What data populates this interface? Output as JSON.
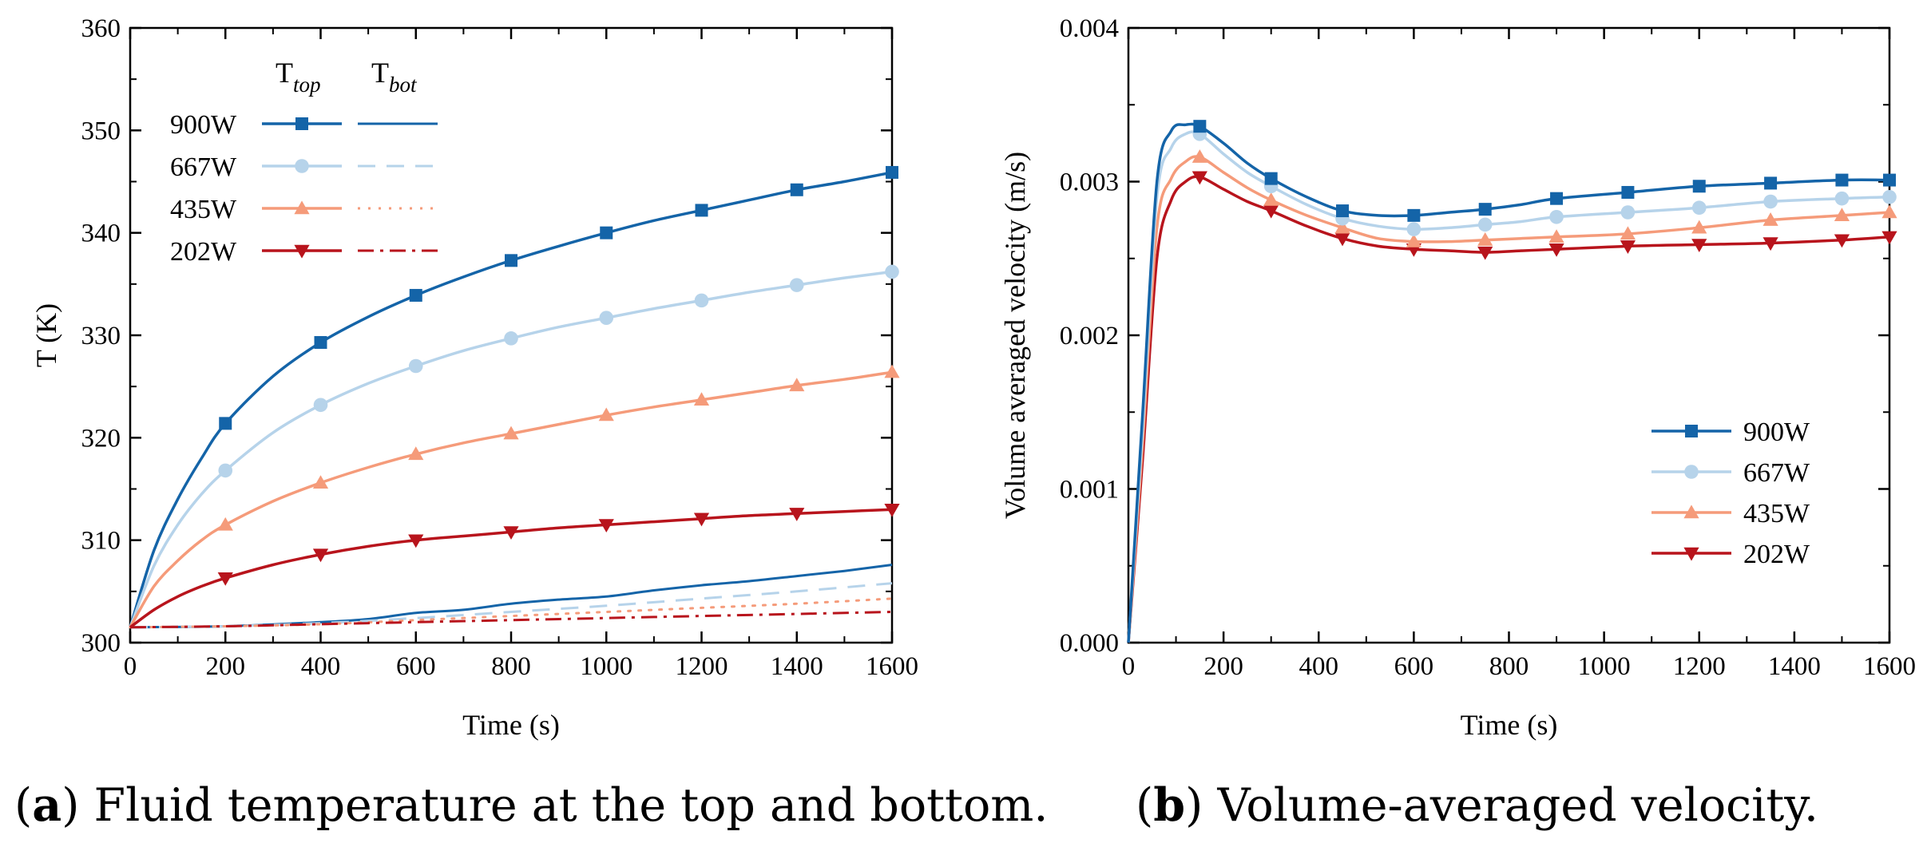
{
  "colors": {
    "900W": "#1464a8",
    "667W": "#b6d3ea",
    "435W": "#f59b7a",
    "202W": "#b8141c"
  },
  "chart_data": [
    {
      "id": "a",
      "type": "line",
      "xlabel": "Time (s)",
      "ylabel": "T (K)",
      "xlim": [
        0,
        1600
      ],
      "ylim": [
        300,
        360
      ],
      "xticks": [
        0,
        200,
        400,
        600,
        800,
        1000,
        1200,
        1400,
        1600
      ],
      "yticks": [
        300,
        310,
        320,
        330,
        340,
        350,
        360
      ],
      "legend_headers": {
        "top_base": "T",
        "top_sub": "top",
        "bot_base": "T",
        "bot_sub": "bot"
      },
      "series": [
        {
          "name": "900W",
          "key": "900W",
          "marker": "square",
          "top": [
            [
              0,
              301.5
            ],
            [
              50,
              309
            ],
            [
              100,
              314
            ],
            [
              150,
              318
            ],
            [
              200,
              321.4
            ],
            [
              300,
              326
            ],
            [
              400,
              329.3
            ],
            [
              500,
              331.8
            ],
            [
              600,
              333.9
            ],
            [
              700,
              335.7
            ],
            [
              800,
              337.3
            ],
            [
              900,
              338.7
            ],
            [
              1000,
              340
            ],
            [
              1100,
              341.2
            ],
            [
              1200,
              342.2
            ],
            [
              1300,
              343.2
            ],
            [
              1400,
              344.2
            ],
            [
              1500,
              345
            ],
            [
              1600,
              345.9
            ]
          ],
          "bot": [
            [
              0,
              301.5
            ],
            [
              200,
              301.6
            ],
            [
              400,
              302
            ],
            [
              500,
              302.3
            ],
            [
              600,
              302.9
            ],
            [
              700,
              303.2
            ],
            [
              800,
              303.8
            ],
            [
              900,
              304.2
            ],
            [
              1000,
              304.5
            ],
            [
              1100,
              305.1
            ],
            [
              1200,
              305.6
            ],
            [
              1300,
              306
            ],
            [
              1400,
              306.5
            ],
            [
              1500,
              307
            ],
            [
              1600,
              307.6
            ]
          ]
        },
        {
          "name": "667W",
          "key": "667W",
          "marker": "circle",
          "top": [
            [
              0,
              301.5
            ],
            [
              50,
              307.5
            ],
            [
              100,
              311.5
            ],
            [
              150,
              314.5
            ],
            [
              200,
              316.8
            ],
            [
              300,
              320.5
            ],
            [
              400,
              323.2
            ],
            [
              500,
              325.3
            ],
            [
              600,
              327
            ],
            [
              700,
              328.5
            ],
            [
              800,
              329.7
            ],
            [
              900,
              330.8
            ],
            [
              1000,
              331.7
            ],
            [
              1100,
              332.6
            ],
            [
              1200,
              333.4
            ],
            [
              1300,
              334.2
            ],
            [
              1400,
              334.9
            ],
            [
              1500,
              335.6
            ],
            [
              1600,
              336.2
            ]
          ],
          "bot": [
            [
              0,
              301.5
            ],
            [
              200,
              301.6
            ],
            [
              400,
              301.9
            ],
            [
              600,
              302.4
            ],
            [
              800,
              303
            ],
            [
              1000,
              303.6
            ],
            [
              1200,
              304.3
            ],
            [
              1400,
              305
            ],
            [
              1600,
              305.8
            ]
          ]
        },
        {
          "name": "435W",
          "key": "435W",
          "marker": "triangle-up",
          "top": [
            [
              0,
              301.5
            ],
            [
              50,
              305.5
            ],
            [
              100,
              308
            ],
            [
              150,
              310
            ],
            [
              200,
              311.5
            ],
            [
              300,
              313.8
            ],
            [
              400,
              315.6
            ],
            [
              500,
              317.1
            ],
            [
              600,
              318.4
            ],
            [
              700,
              319.5
            ],
            [
              800,
              320.4
            ],
            [
              900,
              321.3
            ],
            [
              1000,
              322.2
            ],
            [
              1100,
              323
            ],
            [
              1200,
              323.7
            ],
            [
              1300,
              324.4
            ],
            [
              1400,
              325.1
            ],
            [
              1500,
              325.7
            ],
            [
              1600,
              326.4
            ]
          ],
          "bot": [
            [
              0,
              301.5
            ],
            [
              200,
              301.6
            ],
            [
              400,
              301.8
            ],
            [
              600,
              302.2
            ],
            [
              800,
              302.6
            ],
            [
              1000,
              303
            ],
            [
              1200,
              303.4
            ],
            [
              1400,
              303.8
            ],
            [
              1600,
              304.3
            ]
          ]
        },
        {
          "name": "202W",
          "key": "202W",
          "marker": "triangle-down",
          "top": [
            [
              0,
              301.5
            ],
            [
              50,
              303.2
            ],
            [
              100,
              304.5
            ],
            [
              150,
              305.5
            ],
            [
              200,
              306.3
            ],
            [
              300,
              307.6
            ],
            [
              400,
              308.6
            ],
            [
              500,
              309.4
            ],
            [
              600,
              310
            ],
            [
              700,
              310.4
            ],
            [
              800,
              310.8
            ],
            [
              900,
              311.2
            ],
            [
              1000,
              311.5
            ],
            [
              1100,
              311.8
            ],
            [
              1200,
              312.1
            ],
            [
              1300,
              312.4
            ],
            [
              1400,
              312.6
            ],
            [
              1500,
              312.8
            ],
            [
              1600,
              313
            ]
          ],
          "bot": [
            [
              0,
              301.5
            ],
            [
              200,
              301.6
            ],
            [
              400,
              301.8
            ],
            [
              600,
              302
            ],
            [
              800,
              302.2
            ],
            [
              1000,
              302.4
            ],
            [
              1200,
              302.6
            ],
            [
              1400,
              302.8
            ],
            [
              1600,
              303
            ]
          ]
        }
      ]
    },
    {
      "id": "b",
      "type": "line",
      "xlabel": "Time (s)",
      "ylabel": "Volume averaged velocity (m/s)",
      "xlim": [
        0,
        1600
      ],
      "ylim": [
        0.0,
        0.004
      ],
      "xticks": [
        0,
        200,
        400,
        600,
        800,
        1000,
        1200,
        1400,
        1600
      ],
      "yticks": [
        "0.000",
        "0.001",
        "0.002",
        "0.003",
        "0.004"
      ],
      "legend_position": "bottom-right",
      "series": [
        {
          "name": "900W",
          "key": "900W",
          "marker": "square",
          "points": [
            [
              0,
              0
            ],
            [
              30,
              0.0015
            ],
            [
              60,
              0.003
            ],
            [
              90,
              0.00333
            ],
            [
              120,
              0.00337
            ],
            [
              150,
              0.00336
            ],
            [
              200,
              0.00325
            ],
            [
              250,
              0.00312
            ],
            [
              300,
              0.00302
            ],
            [
              375,
              0.0029
            ],
            [
              450,
              0.00281
            ],
            [
              525,
              0.00278
            ],
            [
              600,
              0.00278
            ],
            [
              675,
              0.0028
            ],
            [
              750,
              0.00282
            ],
            [
              825,
              0.00285
            ],
            [
              900,
              0.00289
            ],
            [
              1050,
              0.00293
            ],
            [
              1200,
              0.00297
            ],
            [
              1350,
              0.00299
            ],
            [
              1500,
              0.00301
            ],
            [
              1600,
              0.00301
            ]
          ],
          "markers": [
            150,
            300,
            450,
            600,
            750,
            900,
            1050,
            1200,
            1350,
            1500,
            1600
          ]
        },
        {
          "name": "667W",
          "key": "667W",
          "marker": "circle",
          "points": [
            [
              0,
              0
            ],
            [
              30,
              0.0014
            ],
            [
              60,
              0.0029
            ],
            [
              90,
              0.00322
            ],
            [
              120,
              0.00331
            ],
            [
              150,
              0.00331
            ],
            [
              200,
              0.00318
            ],
            [
              250,
              0.00306
            ],
            [
              300,
              0.00297
            ],
            [
              375,
              0.00285
            ],
            [
              450,
              0.00276
            ],
            [
              525,
              0.00271
            ],
            [
              600,
              0.00269
            ],
            [
              675,
              0.0027
            ],
            [
              750,
              0.00272
            ],
            [
              825,
              0.00274
            ],
            [
              900,
              0.00277
            ],
            [
              1050,
              0.0028
            ],
            [
              1200,
              0.00283
            ],
            [
              1350,
              0.00287
            ],
            [
              1500,
              0.00289
            ],
            [
              1600,
              0.0029
            ]
          ],
          "markers": [
            150,
            300,
            450,
            600,
            750,
            900,
            1050,
            1200,
            1350,
            1500,
            1600
          ]
        },
        {
          "name": "435W",
          "key": "435W",
          "marker": "triangle-up",
          "points": [
            [
              0,
              0
            ],
            [
              30,
              0.0013
            ],
            [
              60,
              0.0027
            ],
            [
              90,
              0.00302
            ],
            [
              120,
              0.00313
            ],
            [
              150,
              0.00316
            ],
            [
              200,
              0.00306
            ],
            [
              250,
              0.00296
            ],
            [
              300,
              0.00288
            ],
            [
              375,
              0.00278
            ],
            [
              450,
              0.0027
            ],
            [
              525,
              0.00263
            ],
            [
              600,
              0.00261
            ],
            [
              675,
              0.00261
            ],
            [
              750,
              0.00262
            ],
            [
              825,
              0.00263
            ],
            [
              900,
              0.00264
            ],
            [
              1050,
              0.00266
            ],
            [
              1200,
              0.0027
            ],
            [
              1350,
              0.00275
            ],
            [
              1500,
              0.00278
            ],
            [
              1600,
              0.0028
            ]
          ],
          "markers": [
            150,
            300,
            450,
            600,
            750,
            900,
            1050,
            1200,
            1350,
            1500,
            1600
          ]
        },
        {
          "name": "202W",
          "key": "202W",
          "marker": "triangle-down",
          "points": [
            [
              0,
              0
            ],
            [
              30,
              0.0012
            ],
            [
              60,
              0.0025
            ],
            [
              90,
              0.00288
            ],
            [
              120,
              0.003
            ],
            [
              150,
              0.00303
            ],
            [
              200,
              0.00295
            ],
            [
              250,
              0.00287
            ],
            [
              300,
              0.00281
            ],
            [
              375,
              0.00271
            ],
            [
              450,
              0.00263
            ],
            [
              525,
              0.00258
            ],
            [
              600,
              0.00256
            ],
            [
              675,
              0.00255
            ],
            [
              750,
              0.00254
            ],
            [
              825,
              0.00255
            ],
            [
              900,
              0.00256
            ],
            [
              1050,
              0.00258
            ],
            [
              1200,
              0.00259
            ],
            [
              1350,
              0.0026
            ],
            [
              1500,
              0.00262
            ],
            [
              1600,
              0.00264
            ]
          ],
          "markers": [
            150,
            300,
            450,
            600,
            750,
            900,
            1050,
            1200,
            1350,
            1500,
            1600
          ]
        }
      ]
    }
  ],
  "captions": {
    "a": {
      "label": "a",
      "text": " Fluid temperature at the top and bottom."
    },
    "b": {
      "label": "b",
      "text": " Volume-averaged velocity."
    }
  }
}
